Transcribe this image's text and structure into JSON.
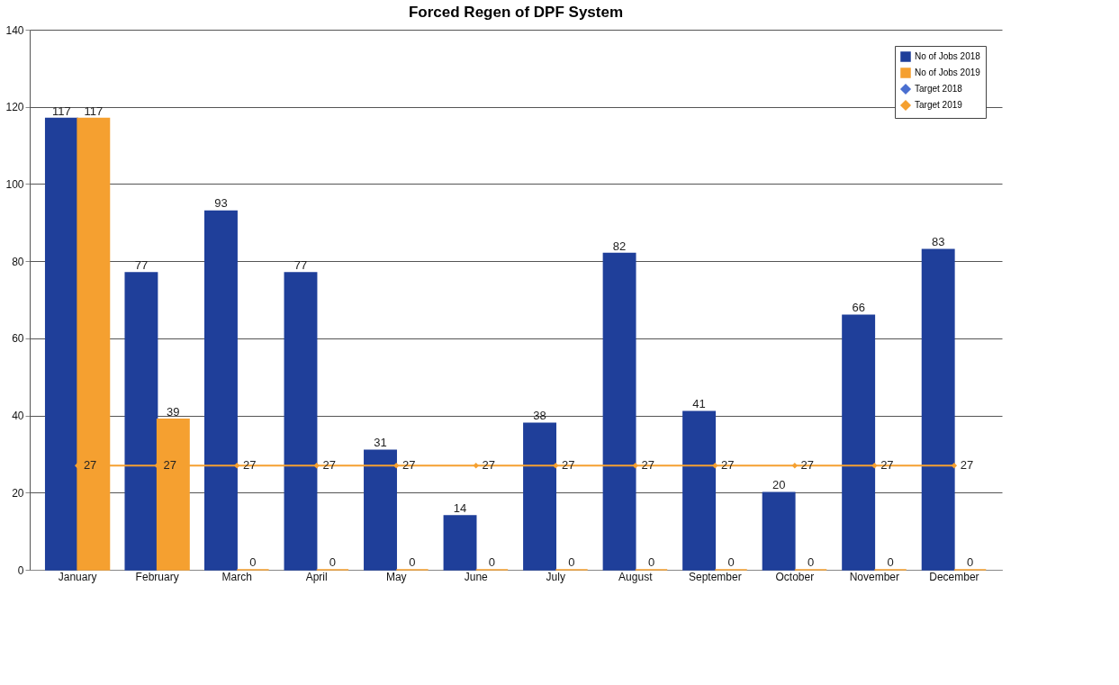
{
  "chart_data": {
    "type": "bar",
    "title": "Forced Regen of DPF System",
    "categories": [
      "January",
      "February",
      "March",
      "April",
      "May",
      "June",
      "July",
      "August",
      "September",
      "October",
      "November",
      "December"
    ],
    "series": [
      {
        "name": "No of Jobs 2018",
        "color": "#1f3f9a",
        "values": [
          117,
          77,
          93,
          77,
          31,
          14,
          38,
          82,
          41,
          20,
          66,
          83
        ]
      },
      {
        "name": "No of Jobs 2019",
        "color": "#f5a030",
        "values": [
          117,
          39,
          0,
          0,
          0,
          0,
          0,
          0,
          0,
          0,
          0,
          0
        ]
      },
      {
        "name": "Target 2018",
        "type": "line",
        "color": "#4a6fd0",
        "values": [
          null,
          null,
          null,
          null,
          null,
          null,
          null,
          null,
          null,
          null,
          null,
          null
        ]
      },
      {
        "name": "Target 2019",
        "type": "line",
        "color": "#f5a030",
        "values": [
          27,
          27,
          27,
          27,
          27,
          27,
          27,
          27,
          27,
          27,
          27,
          27
        ]
      }
    ],
    "ylim": [
      0,
      140
    ],
    "yticks": [
      0,
      20,
      40,
      60,
      80,
      100,
      120,
      140
    ],
    "grid": "y",
    "legend": "top right",
    "marker": "diamond",
    "data_labels": true
  }
}
